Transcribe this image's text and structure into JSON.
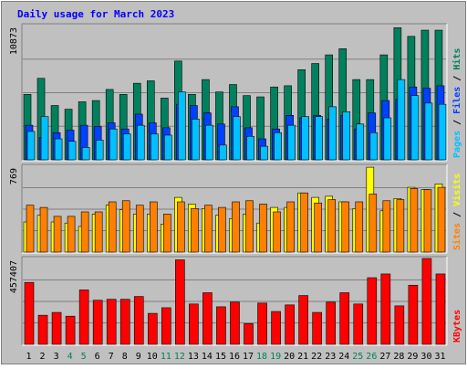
{
  "chart_data": {
    "type": "bar",
    "title": "Daily usage for March 2023",
    "categories": [
      "1",
      "2",
      "3",
      "4",
      "5",
      "6",
      "7",
      "8",
      "9",
      "10",
      "11",
      "12",
      "13",
      "14",
      "15",
      "16",
      "17",
      "18",
      "19",
      "20",
      "21",
      "22",
      "23",
      "24",
      "25",
      "26",
      "27",
      "28",
      "29",
      "30",
      "31"
    ],
    "weekend_days": [
      "4",
      "5",
      "11",
      "12",
      "18",
      "19",
      "25",
      "26"
    ],
    "panels": [
      {
        "name": "hits-files-pages",
        "ymax_label": "10873",
        "ymax": 10873,
        "legend": [
          "Pages",
          "Files",
          "Hits"
        ],
        "series": [
          {
            "name": "Hits",
            "color": "#00805c",
            "values": [
              5300,
              6600,
              4400,
              4100,
              4700,
              4800,
              5700,
              5300,
              6200,
              6400,
              5000,
              8000,
              5300,
              6500,
              5500,
              6100,
              5200,
              5100,
              5900,
              6000,
              7300,
              7800,
              8500,
              9000,
              6500,
              6500,
              8500,
              10700,
              10000,
              10500,
              10500
            ]
          },
          {
            "name": "Files",
            "color": "#0040ff",
            "values": [
              2800,
              1800,
              2200,
              2400,
              2800,
              2700,
              3000,
              2500,
              3700,
              3000,
              2600,
              4500,
              4400,
              3800,
              2900,
              4300,
              2600,
              1700,
              2500,
              3600,
              3400,
              3600,
              3300,
              3600,
              2500,
              3800,
              4800,
              4900,
              5900,
              5800,
              6000
            ]
          },
          {
            "name": "Pages",
            "color": "#00c0ff",
            "values": [
              2300,
              3500,
              1700,
              1500,
              1000,
              1600,
              2500,
              2100,
              2800,
              2100,
              2000,
              5500,
              3300,
              2800,
              1200,
              3500,
              1900,
              1100,
              2200,
              2800,
              3500,
              3500,
              4300,
              3900,
              2900,
              2200,
              3400,
              6500,
              5200,
              4600,
              4500
            ]
          }
        ]
      },
      {
        "name": "visits-sites",
        "ymax_label": "769",
        "ymax": 769,
        "legend": [
          "Sites",
          "Visits"
        ],
        "series": [
          {
            "name": "Visits",
            "color": "#ffff00",
            "values": [
              270,
              330,
              270,
              260,
              230,
              340,
              420,
              380,
              340,
              340,
              250,
              490,
              430,
              390,
              330,
              300,
              340,
              260,
              400,
              400,
              530,
              490,
              500,
              450,
              390,
              760,
              370,
              480,
              580,
              560,
              610
            ]
          },
          {
            "name": "Sites",
            "color": "#ff8000",
            "values": [
              420,
              400,
              320,
              320,
              360,
              360,
              450,
              460,
              420,
              450,
              340,
              450,
              390,
              420,
              400,
              450,
              460,
              430,
              360,
              450,
              530,
              440,
              470,
              450,
              450,
              520,
              460,
              470,
              570,
              560,
              580
            ]
          }
        ]
      },
      {
        "name": "kbytes",
        "ymax_label": "457407",
        "ymax": 457407,
        "legend": [
          "KBytes"
        ],
        "series": [
          {
            "name": "KBytes",
            "color": "#ff0000",
            "values": [
              330000,
              155000,
              170000,
              150000,
              290000,
              235000,
              240000,
              240000,
              255000,
              165000,
              195000,
              450000,
              215000,
              275000,
              200000,
              225000,
              110000,
              220000,
              175000,
              210000,
              260000,
              170000,
              225000,
              275000,
              215000,
              355000,
              375000,
              205000,
              315000,
              465000,
              375000
            ]
          }
        ]
      }
    ]
  },
  "colors": {
    "background": "#c0c0c0",
    "title": "#0000ff",
    "axis_text": "#000000",
    "weekend_text": "#00805c",
    "grid": "#808080"
  }
}
